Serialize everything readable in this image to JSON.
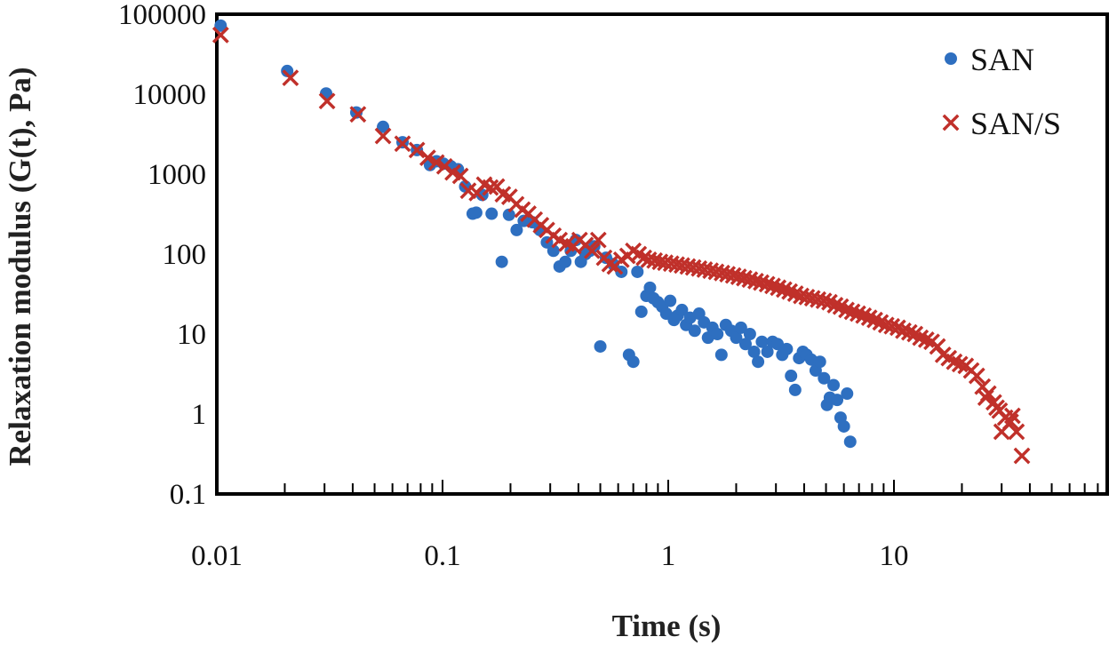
{
  "chart_data": {
    "type": "scatter",
    "xlabel": "Time (s)",
    "ylabel": "Relaxation modulus (G(t), Pa)",
    "x_scale": "log",
    "y_scale": "log",
    "xlim": [
      0.01,
      100
    ],
    "ylim": [
      0.1,
      100000
    ],
    "x_tick_values": [
      0.01,
      0.1,
      1,
      10
    ],
    "x_tick_labels": [
      "0.01",
      "0.1",
      "1",
      "10"
    ],
    "y_tick_values": [
      100000,
      10000,
      1000,
      100,
      10,
      1,
      0.1
    ],
    "y_tick_labels": [
      "100000",
      "10000",
      "1000",
      "100",
      "10",
      "1",
      "0.1"
    ],
    "grid": false,
    "legend_position": "top-right",
    "series": [
      {
        "name": "SAN",
        "marker": "circle",
        "color": "#2e6fc0",
        "points": [
          [
            0.0104,
            72000
          ],
          [
            0.0205,
            19500
          ],
          [
            0.0305,
            10200
          ],
          [
            0.0415,
            5900
          ],
          [
            0.0545,
            3900
          ],
          [
            0.0665,
            2500
          ],
          [
            0.077,
            2000
          ],
          [
            0.088,
            1300
          ],
          [
            0.094,
            1450
          ],
          [
            0.101,
            1350
          ],
          [
            0.109,
            1250
          ],
          [
            0.117,
            1150
          ],
          [
            0.126,
            700
          ],
          [
            0.136,
            320
          ],
          [
            0.141,
            330
          ],
          [
            0.15,
            550
          ],
          [
            0.165,
            320
          ],
          [
            0.183,
            80
          ],
          [
            0.197,
            310
          ],
          [
            0.213,
            200
          ],
          [
            0.229,
            260
          ],
          [
            0.25,
            250
          ],
          [
            0.27,
            200
          ],
          [
            0.29,
            140
          ],
          [
            0.31,
            110
          ],
          [
            0.33,
            70
          ],
          [
            0.35,
            80
          ],
          [
            0.37,
            110
          ],
          [
            0.39,
            150
          ],
          [
            0.41,
            80
          ],
          [
            0.43,
            100
          ],
          [
            0.45,
            110
          ],
          [
            0.47,
            125
          ],
          [
            0.5,
            7
          ],
          [
            0.53,
            90
          ],
          [
            0.57,
            75
          ],
          [
            0.62,
            60
          ],
          [
            0.67,
            5.5
          ],
          [
            0.7,
            4.5
          ],
          [
            0.73,
            60
          ],
          [
            0.76,
            19
          ],
          [
            0.8,
            30
          ],
          [
            0.83,
            38
          ],
          [
            0.86,
            28
          ],
          [
            0.9,
            25
          ],
          [
            0.94,
            22
          ],
          [
            0.98,
            18
          ],
          [
            1.02,
            26
          ],
          [
            1.06,
            15
          ],
          [
            1.1,
            17
          ],
          [
            1.15,
            20
          ],
          [
            1.2,
            13
          ],
          [
            1.25,
            16
          ],
          [
            1.31,
            11
          ],
          [
            1.37,
            18
          ],
          [
            1.44,
            14
          ],
          [
            1.5,
            9
          ],
          [
            1.57,
            12
          ],
          [
            1.65,
            10
          ],
          [
            1.72,
            5.5
          ],
          [
            1.8,
            13
          ],
          [
            1.9,
            11
          ],
          [
            2.0,
            9
          ],
          [
            2.1,
            12
          ],
          [
            2.2,
            7.5
          ],
          [
            2.3,
            10
          ],
          [
            2.4,
            6
          ],
          [
            2.5,
            4.5
          ],
          [
            2.6,
            8
          ],
          [
            2.75,
            6
          ],
          [
            2.9,
            8
          ],
          [
            3.05,
            7.5
          ],
          [
            3.2,
            5.5
          ],
          [
            3.35,
            6.5
          ],
          [
            3.5,
            3
          ],
          [
            3.65,
            2
          ],
          [
            3.8,
            5
          ],
          [
            3.95,
            6
          ],
          [
            4.1,
            5.5
          ],
          [
            4.3,
            4.8
          ],
          [
            4.5,
            3.5
          ],
          [
            4.7,
            4.5
          ],
          [
            4.9,
            2.8
          ],
          [
            5.05,
            1.3
          ],
          [
            5.2,
            1.6
          ],
          [
            5.4,
            2.3
          ],
          [
            5.6,
            1.5
          ],
          [
            5.8,
            0.9
          ],
          [
            6.0,
            0.7
          ],
          [
            6.2,
            1.8
          ],
          [
            6.4,
            0.45
          ]
        ]
      },
      {
        "name": "SAN/S",
        "marker": "x",
        "color": "#c0302a",
        "points": [
          [
            0.0104,
            55000
          ],
          [
            0.0212,
            16000
          ],
          [
            0.0308,
            8200
          ],
          [
            0.0422,
            5600
          ],
          [
            0.0545,
            3000
          ],
          [
            0.0665,
            2400
          ],
          [
            0.077,
            2000
          ],
          [
            0.086,
            1600
          ],
          [
            0.094,
            1400
          ],
          [
            0.102,
            1250
          ],
          [
            0.111,
            1050
          ],
          [
            0.12,
            950
          ],
          [
            0.13,
            620
          ],
          [
            0.142,
            580
          ],
          [
            0.153,
            740
          ],
          [
            0.163,
            680
          ],
          [
            0.174,
            700
          ],
          [
            0.185,
            560
          ],
          [
            0.198,
            520
          ],
          [
            0.212,
            420
          ],
          [
            0.226,
            360
          ],
          [
            0.24,
            320
          ],
          [
            0.256,
            270
          ],
          [
            0.273,
            230
          ],
          [
            0.29,
            200
          ],
          [
            0.31,
            170
          ],
          [
            0.33,
            150
          ],
          [
            0.355,
            135
          ],
          [
            0.38,
            125
          ],
          [
            0.405,
            150
          ],
          [
            0.43,
            130
          ],
          [
            0.46,
            110
          ],
          [
            0.49,
            150
          ],
          [
            0.52,
            90
          ],
          [
            0.55,
            75
          ],
          [
            0.58,
            70
          ],
          [
            0.62,
            85
          ],
          [
            0.66,
            95
          ],
          [
            0.7,
            110
          ],
          [
            0.74,
            100
          ],
          [
            0.78,
            90
          ],
          [
            0.82,
            85
          ],
          [
            0.87,
            83
          ],
          [
            0.92,
            80
          ],
          [
            0.97,
            78
          ],
          [
            1.03,
            76
          ],
          [
            1.09,
            74
          ],
          [
            1.15,
            72
          ],
          [
            1.22,
            70
          ],
          [
            1.29,
            68
          ],
          [
            1.37,
            66
          ],
          [
            1.45,
            64
          ],
          [
            1.54,
            62
          ],
          [
            1.63,
            60
          ],
          [
            1.73,
            58
          ],
          [
            1.83,
            56
          ],
          [
            1.94,
            54
          ],
          [
            2.05,
            52
          ],
          [
            2.17,
            50
          ],
          [
            2.3,
            48
          ],
          [
            2.44,
            46
          ],
          [
            2.58,
            44
          ],
          [
            2.74,
            42
          ],
          [
            2.9,
            40
          ],
          [
            3.07,
            38
          ],
          [
            3.26,
            36
          ],
          [
            3.45,
            34
          ],
          [
            3.66,
            32
          ],
          [
            3.88,
            30
          ],
          [
            4.11,
            29
          ],
          [
            4.35,
            28
          ],
          [
            4.61,
            27
          ],
          [
            4.89,
            26
          ],
          [
            5.18,
            25
          ],
          [
            5.49,
            23
          ],
          [
            5.81,
            22
          ],
          [
            6.16,
            20
          ],
          [
            6.53,
            19
          ],
          [
            6.92,
            18
          ],
          [
            7.33,
            17
          ],
          [
            7.77,
            16
          ],
          [
            8.23,
            15
          ],
          [
            8.72,
            14
          ],
          [
            9.24,
            13
          ],
          [
            9.79,
            12.5
          ],
          [
            10.4,
            12
          ],
          [
            11.0,
            11
          ],
          [
            11.7,
            10.5
          ],
          [
            12.4,
            10
          ],
          [
            13.1,
            9
          ],
          [
            13.9,
            8.5
          ],
          [
            14.7,
            8
          ],
          [
            15.6,
            7
          ],
          [
            16.5,
            5.5
          ],
          [
            17.5,
            5
          ],
          [
            18.5,
            4.5
          ],
          [
            19.6,
            4.2
          ],
          [
            20.8,
            4
          ],
          [
            22.0,
            3.5
          ],
          [
            23.3,
            3
          ],
          [
            24.7,
            2.2
          ],
          [
            26.2,
            1.8
          ],
          [
            27.7,
            1.4
          ],
          [
            29.4,
            1.1
          ],
          [
            31.1,
            0.9
          ],
          [
            32.9,
            0.8
          ],
          [
            34.9,
            0.6
          ],
          [
            36.9,
            0.3
          ],
          [
            30.0,
            0.6
          ],
          [
            33.5,
            0.95
          ],
          [
            28.5,
            1.2
          ],
          [
            25.5,
            1.6
          ]
        ]
      }
    ]
  }
}
